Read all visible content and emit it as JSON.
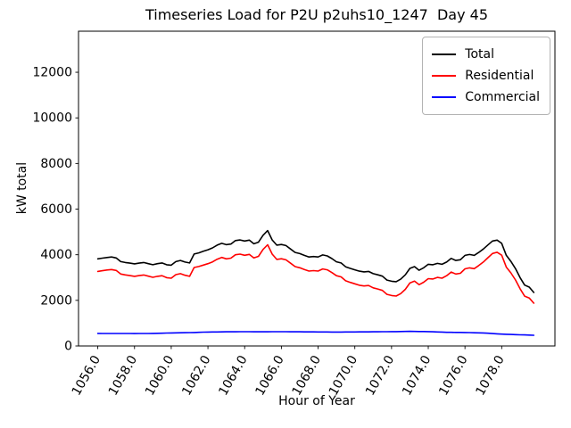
{
  "chart_data": {
    "type": "line",
    "title": "Timeseries Load for P2U p2uhs10_1247  Day 45",
    "xlabel": "Hour of Year",
    "ylabel": "kW total",
    "xlim": [
      1054.95,
      1080.9
    ],
    "ylim": [
      0,
      13800
    ],
    "grid": false,
    "legend_position": "upper right",
    "xticks": [
      1056,
      1058,
      1060,
      1062,
      1064,
      1066,
      1068,
      1070,
      1072,
      1074,
      1076,
      1078
    ],
    "xtick_labels": [
      "1056.0",
      "1058.0",
      "1060.0",
      "1062.0",
      "1064.0",
      "1066.0",
      "1068.0",
      "1070.0",
      "1072.0",
      "1074.0",
      "1076.0",
      "1078.0"
    ],
    "yticks": [
      0,
      2000,
      4000,
      6000,
      8000,
      10000,
      12000
    ],
    "ytick_labels": [
      "0",
      "2000",
      "4000",
      "6000",
      "8000",
      "10000",
      "12000"
    ],
    "x": [
      1056.0,
      1056.25,
      1056.5,
      1056.75,
      1057.0,
      1057.25,
      1057.5,
      1057.75,
      1058.0,
      1058.25,
      1058.5,
      1058.75,
      1059.0,
      1059.25,
      1059.5,
      1059.75,
      1060.0,
      1060.25,
      1060.5,
      1060.75,
      1061.0,
      1061.25,
      1061.5,
      1061.75,
      1062.0,
      1062.25,
      1062.5,
      1062.75,
      1063.0,
      1063.25,
      1063.5,
      1063.75,
      1064.0,
      1064.25,
      1064.5,
      1064.75,
      1065.0,
      1065.25,
      1065.5,
      1065.75,
      1066.0,
      1066.25,
      1066.5,
      1066.75,
      1067.0,
      1067.25,
      1067.5,
      1067.75,
      1068.0,
      1068.25,
      1068.5,
      1068.75,
      1069.0,
      1069.25,
      1069.5,
      1069.75,
      1070.0,
      1070.25,
      1070.5,
      1070.75,
      1071.0,
      1071.25,
      1071.5,
      1071.75,
      1072.0,
      1072.25,
      1072.5,
      1072.75,
      1073.0,
      1073.25,
      1073.5,
      1073.75,
      1074.0,
      1074.25,
      1074.5,
      1074.75,
      1075.0,
      1075.25,
      1075.5,
      1075.75,
      1076.0,
      1076.25,
      1076.5,
      1076.75,
      1077.0,
      1077.25,
      1077.5,
      1077.75,
      1078.0,
      1078.25,
      1078.5,
      1078.75,
      1079.0,
      1079.25,
      1079.5,
      1079.75
    ],
    "series": [
      {
        "name": "Total",
        "color": "#000000",
        "values": [
          3820,
          3850,
          3880,
          3900,
          3860,
          3700,
          3660,
          3630,
          3600,
          3630,
          3660,
          3610,
          3560,
          3610,
          3640,
          3560,
          3540,
          3700,
          3750,
          3680,
          3640,
          4030,
          4080,
          4150,
          4220,
          4300,
          4420,
          4500,
          4440,
          4470,
          4620,
          4650,
          4600,
          4640,
          4480,
          4550,
          4850,
          5060,
          4650,
          4420,
          4450,
          4400,
          4250,
          4100,
          4050,
          3970,
          3900,
          3920,
          3900,
          3990,
          3950,
          3830,
          3690,
          3640,
          3470,
          3400,
          3340,
          3280,
          3250,
          3270,
          3170,
          3120,
          3060,
          2890,
          2840,
          2820,
          2930,
          3120,
          3400,
          3480,
          3320,
          3430,
          3580,
          3560,
          3620,
          3580,
          3680,
          3840,
          3750,
          3780,
          3970,
          4010,
          3970,
          4100,
          4250,
          4430,
          4600,
          4640,
          4500,
          3970,
          3710,
          3390,
          3000,
          2670,
          2580,
          2345
        ]
      },
      {
        "name": "Residential",
        "color": "#ff0000",
        "values": [
          3270,
          3301,
          3331,
          3352,
          3312,
          3153,
          3114,
          3084,
          3055,
          3084,
          3113,
          3061,
          3010,
          3055,
          3080,
          2995,
          2970,
          3126,
          3172,
          3099,
          3055,
          3439,
          3482,
          3546,
          3610,
          3687,
          3805,
          3882,
          3820,
          3849,
          3998,
          4026,
          3975,
          4016,
          3857,
          3927,
          4228,
          4437,
          4026,
          3796,
          3825,
          3776,
          3627,
          3479,
          3430,
          3351,
          3282,
          3304,
          3285,
          3376,
          3337,
          3219,
          3080,
          3029,
          2857,
          2786,
          2725,
          2664,
          2632,
          2651,
          2550,
          2498,
          2436,
          2264,
          2212,
          2189,
          2296,
          2483,
          2760,
          2842,
          2685,
          2797,
          2950,
          2937,
          3005,
          2972,
          3080,
          3242,
          3155,
          3187,
          3380,
          3425,
          3390,
          3525,
          3680,
          3872,
          4055,
          4107,
          3980,
          3457,
          3205,
          2892,
          2510,
          2187,
          2103,
          1875
        ]
      },
      {
        "name": "Commercial",
        "color": "#0000ff",
        "values": [
          550,
          549,
          549,
          548,
          548,
          547,
          546,
          546,
          545,
          546,
          547,
          549,
          550,
          555,
          560,
          565,
          570,
          574,
          578,
          581,
          585,
          591,
          598,
          604,
          610,
          613,
          615,
          618,
          620,
          621,
          622,
          624,
          625,
          624,
          623,
          623,
          622,
          623,
          624,
          624,
          625,
          624,
          623,
          621,
          620,
          619,
          618,
          616,
          615,
          614,
          613,
          611,
          610,
          611,
          613,
          614,
          615,
          616,
          618,
          619,
          620,
          622,
          624,
          626,
          628,
          631,
          634,
          637,
          640,
          638,
          635,
          633,
          630,
          623,
          615,
          608,
          600,
          598,
          595,
          593,
          590,
          585,
          580,
          575,
          570,
          558,
          545,
          533,
          520,
          513,
          505,
          498,
          490,
          483,
          477,
          470
        ]
      }
    ]
  }
}
